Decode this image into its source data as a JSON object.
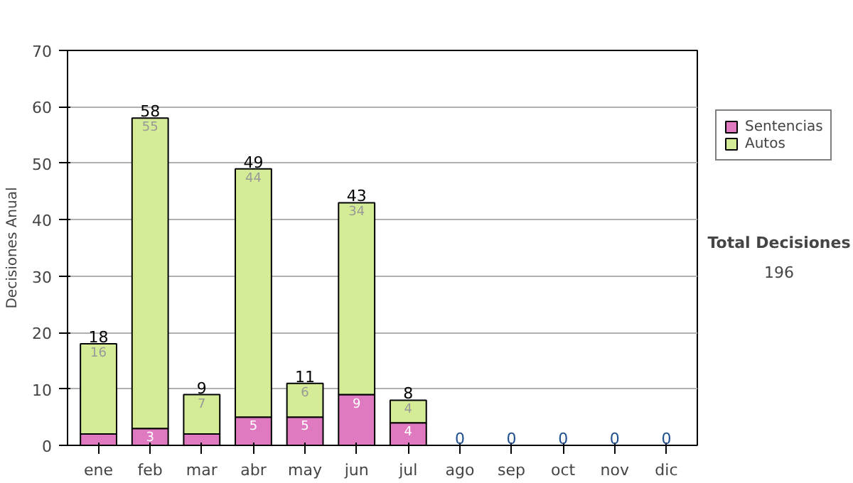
{
  "chart_data": {
    "type": "bar",
    "stacked": true,
    "ylabel": "Decisiones Anual",
    "categories": [
      "ene",
      "feb",
      "mar",
      "abr",
      "may",
      "jun",
      "jul",
      "ago",
      "sep",
      "oct",
      "nov",
      "dic"
    ],
    "series": [
      {
        "name": "Sentencias",
        "color": "#e07ac0",
        "values": [
          2,
          3,
          2,
          5,
          5,
          9,
          4,
          0,
          0,
          0,
          0,
          0
        ],
        "value_labels": [
          null,
          "3",
          null,
          "5",
          "5",
          "9",
          "4",
          null,
          null,
          null,
          null,
          null
        ]
      },
      {
        "name": "Autos",
        "color": "#d5ec96",
        "values": [
          16,
          55,
          7,
          44,
          6,
          34,
          4,
          0,
          0,
          0,
          0,
          0
        ],
        "value_labels": [
          "16",
          "55",
          "7",
          "44",
          "6",
          "34",
          "4",
          null,
          null,
          null,
          null,
          null
        ]
      }
    ],
    "totals": [
      "18",
      "58",
      "9",
      "49",
      "11",
      "43",
      "8",
      "0",
      "0",
      "0",
      "0",
      "0"
    ],
    "ylim": [
      0,
      70
    ],
    "yticks": [
      0,
      10,
      20,
      30,
      40,
      50,
      60,
      70
    ],
    "grid": "y",
    "legend": "right",
    "annotations": [
      "Total Decisiones",
      "196"
    ]
  }
}
